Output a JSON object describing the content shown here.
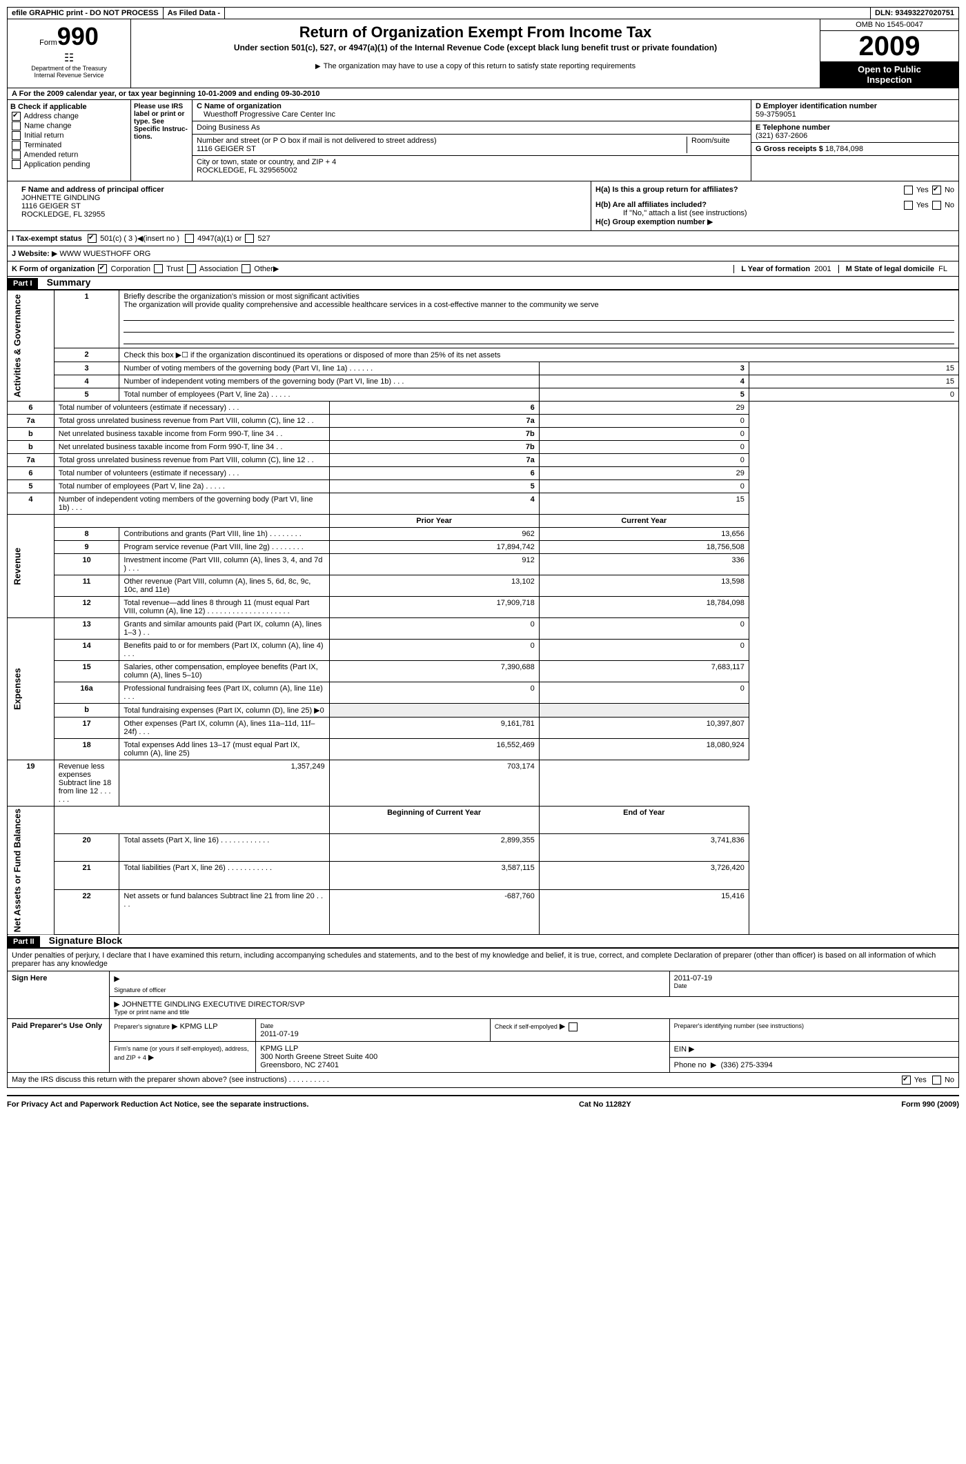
{
  "top": {
    "efile": "efile GRAPHIC print - DO NOT PROCESS",
    "asfiled": "As Filed Data -",
    "dln_label": "DLN:",
    "dln": "93493227020751"
  },
  "header": {
    "form_label": "Form",
    "form_num": "990",
    "dept1": "Department of the Treasury",
    "dept2": "Internal Revenue Service",
    "title": "Return of Organization Exempt From Income Tax",
    "subtitle": "Under section 501(c), 527, or 4947(a)(1) of the Internal Revenue Code (except black lung benefit trust or private foundation)",
    "copy_note": "The organization may have to use a copy of this return to satisfy state reporting requirements",
    "omb": "OMB No 1545-0047",
    "year": "2009",
    "open1": "Open to Public",
    "open2": "Inspection"
  },
  "row_a": "A  For the 2009 calendar year, or tax year beginning 10-01-2009      and ending 09-30-2010",
  "section_b": {
    "label": "B Check if applicable",
    "addr": "Address change",
    "name": "Name change",
    "init": "Initial return",
    "term": "Terminated",
    "amend": "Amended return",
    "app": "Application pending",
    "please": "Please use IRS label or print or type. See Specific Instruc­tions."
  },
  "section_c": {
    "name_label": "C Name of organization",
    "name": "Wuesthoff Progressive Care Center Inc",
    "dba_label": "Doing Business As",
    "street_label": "Number and street (or P O  box if mail is not delivered to street address)",
    "room_label": "Room/suite",
    "street": "1116 GEIGER ST",
    "city_label": "City or town, state or country, and ZIP + 4",
    "city": "ROCKLEDGE, FL  329565002"
  },
  "section_d": {
    "ein_label": "D Employer identification number",
    "ein": "59-3759051",
    "phone_label": "E Telephone number",
    "phone": "(321) 637-2606",
    "gross_label": "G Gross receipts $",
    "gross": "18,784,098"
  },
  "officer": {
    "label": "F  Name and address of principal officer",
    "name": "JOHNETTE GINDLING",
    "addr1": "1116 GEIGER ST",
    "addr2": "ROCKLEDGE, FL  32955"
  },
  "section_h": {
    "ha": "H(a)  Is this a group return for affiliates?",
    "hb": "H(b)  Are all affiliates included?",
    "hb_note": "If \"No,\" attach a list  (see instructions)",
    "hc": "H(c)   Group exemption number",
    "yes": "Yes",
    "no": "No"
  },
  "row_i": {
    "label": "I   Tax-exempt status",
    "c501": "501(c) ( 3 )",
    "insert": "(insert no )",
    "c4947": "4947(a)(1) or",
    "c527": "527"
  },
  "row_j": {
    "label": "J   Website:",
    "url": "WWW WUESTHOFF ORG"
  },
  "row_k": {
    "label": "K Form of organization",
    "corp": "Corporation",
    "trust": "Trust",
    "assoc": "Association",
    "other": "Other",
    "year_label": "L Year of formation",
    "year": "2001",
    "state_label": "M State of legal domicile",
    "state": "FL"
  },
  "part1": {
    "header": "Part I",
    "title": "Summary",
    "line1_label": "Briefly describe the organization's mission or most significant activities",
    "line1_text": "The organization will provide quality comprehensive and accessible healthcare services in a cost-effective manner to the community we serve",
    "line2": "Check this box ▶☐ if the organization discontinued its operations or disposed of more than 25% of its net assets",
    "rows_gov": [
      {
        "n": "3",
        "t": "Number of voting members of the governing body (Part VI, line 1a)  .   .   .   .   .   .",
        "ln": "3",
        "v": "15"
      },
      {
        "n": "4",
        "t": "Number of independent voting members of the governing body (Part VI, line 1b)   .   .   .",
        "ln": "4",
        "v": "15"
      },
      {
        "n": "5",
        "t": "Total number of employees (Part V, line 2a)    .   .   .   .   .",
        "ln": "5",
        "v": "0"
      },
      {
        "n": "6",
        "t": "Total number of volunteers (estimate if necessary)    .   .   .",
        "ln": "6",
        "v": "29"
      },
      {
        "n": "7a",
        "t": "Total gross unrelated business revenue from Part VIII, column (C), line 12   .   .",
        "ln": "7a",
        "v": "0"
      },
      {
        "n": "b",
        "t": "Net unrelated business taxable income from Form 990-T, line 34   .   .",
        "ln": "7b",
        "v": "0"
      }
    ],
    "prior": "Prior Year",
    "current": "Current Year",
    "rows_rev": [
      {
        "n": "8",
        "t": "Contributions and grants (Part VIII, line 1h)   .   .   .   .   .   .   .   .",
        "p": "962",
        "c": "13,656"
      },
      {
        "n": "9",
        "t": "Program service revenue (Part VIII, line 2g)   .   .   .   .   .   .   .   .",
        "p": "17,894,742",
        "c": "18,756,508"
      },
      {
        "n": "10",
        "t": "Investment income (Part VIII, column (A), lines 3, 4, and 7d )   .   .   .",
        "p": "912",
        "c": "336"
      },
      {
        "n": "11",
        "t": "Other revenue (Part VIII, column (A), lines 5, 6d, 8c, 9c, 10c, and 11e)",
        "p": "13,102",
        "c": "13,598"
      },
      {
        "n": "12",
        "t": "Total revenue—add lines 8 through 11 (must equal Part VIII, column (A), line 12)   .   .   .   .   .   .   .   .   .   .   .   .   .   .   .   .   .   .   .   .",
        "p": "17,909,718",
        "c": "18,784,098"
      }
    ],
    "rows_exp": [
      {
        "n": "13",
        "t": "Grants and similar amounts paid (Part IX, column (A), lines 1–3 )   .   .",
        "p": "0",
        "c": "0"
      },
      {
        "n": "14",
        "t": "Benefits paid to or for members (Part IX, column (A), line 4)   .   .   .",
        "p": "0",
        "c": "0"
      },
      {
        "n": "15",
        "t": "Salaries, other compensation, employee benefits (Part IX, column (A), lines 5–10)",
        "p": "7,390,688",
        "c": "7,683,117"
      },
      {
        "n": "16a",
        "t": "Professional fundraising fees (Part IX, column (A), line 11e)   .   .   .",
        "p": "0",
        "c": "0"
      },
      {
        "n": "b",
        "t": "Total fundraising expenses (Part IX, column (D), line 25) ▶0",
        "p": "",
        "c": ""
      },
      {
        "n": "17",
        "t": "Other expenses (Part IX, column (A), lines 11a–11d, 11f–24f)   .   .   .",
        "p": "9,161,781",
        "c": "10,397,807"
      },
      {
        "n": "18",
        "t": "Total expenses  Add lines 13–17 (must equal Part IX, column (A), line 25)",
        "p": "16,552,469",
        "c": "18,080,924"
      },
      {
        "n": "19",
        "t": "Revenue less expenses  Subtract line 18 from line 12  .   .   .   .   .   .",
        "p": "1,357,249",
        "c": "703,174"
      }
    ],
    "begin": "Beginning of Current Year",
    "end": "End of Year",
    "rows_net": [
      {
        "n": "20",
        "t": "Total assets (Part X, line 16)   .   .   .   .   .   .   .   .   .   .   .   .",
        "p": "2,899,355",
        "c": "3,741,836"
      },
      {
        "n": "21",
        "t": "Total liabilities (Part X, line 26)   .   .   .   .   .   .   .   .   .   .   .",
        "p": "3,587,115",
        "c": "3,726,420"
      },
      {
        "n": "22",
        "t": "Net assets or fund balances  Subtract line 21 from line 20  .   .   .   .",
        "p": "-687,760",
        "c": "15,416"
      }
    ],
    "side_gov": "Activities & Governance",
    "side_rev": "Revenue",
    "side_exp": "Expenses",
    "side_net": "Net Assets or Fund Balances"
  },
  "part2": {
    "header": "Part II",
    "title": "Signature Block",
    "perjury": "Under penalties of perjury, I declare that I have examined this return, including accompanying schedules and statements, and to the best of my knowledge and belief, it is true, correct, and complete  Declaration of preparer (other than officer) is based on all information of which preparer has any knowledge",
    "sign_here": "Sign Here",
    "sig_officer": "Signature of officer",
    "date": "Date",
    "sig_date": "2011-07-19",
    "typed_name": "JOHNETTE GINDLING EXECUTIVE DIRECTOR/SVP",
    "typed_label": "Type or print name and title",
    "paid": "Paid Preparer's Use Only",
    "prep_sig": "Preparer's signature",
    "prep_name": "KPMG LLP",
    "prep_date": "2011-07-19",
    "check_self": "Check if self-empolyed",
    "prep_id": "Preparer's identifying number (see instructions)",
    "firm_label": "Firm's name (or yours if self-employed), address, and ZIP + 4",
    "firm_name": "KPMG LLP",
    "firm_addr1": "300 North Greene Street Suite 400",
    "firm_addr2": "Greensboro, NC  27401",
    "ein_label": "EIN",
    "phone_label": "Phone no",
    "phone": "(336) 275-3394",
    "discuss": "May the IRS discuss this return with the preparer shown above? (see instructions)   .   .   .   .   .   .   .   .   .   ."
  },
  "footer": {
    "left": "For Privacy Act and Paperwork Reduction Act Notice, see the separate instructions.",
    "mid": "Cat No 11282Y",
    "right": "Form 990 (2009)"
  }
}
